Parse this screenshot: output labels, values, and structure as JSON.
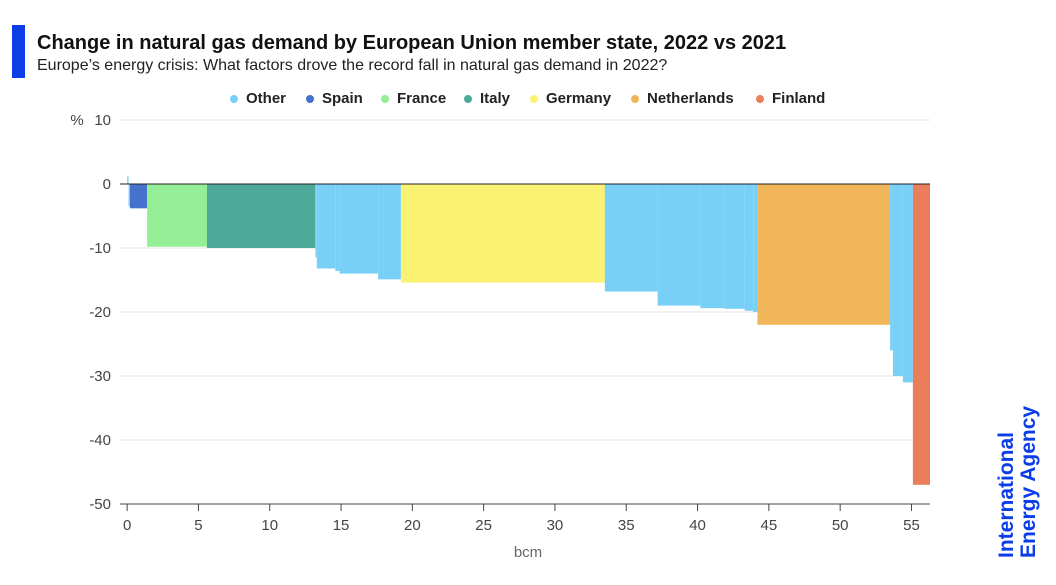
{
  "header": {
    "title": "Change in natural gas demand by European Union member state, 2022 vs 2021",
    "subtitle": "Europe’s energy crisis: What factors drove the record fall in natural gas demand in 2022?"
  },
  "logo": {
    "line1": "International",
    "line2": "Energy Agency"
  },
  "colors": {
    "accent": "#0c3ee8",
    "Other": "#79d0f7",
    "Spain": "#4472cc",
    "France": "#93ee96",
    "Italy": "#4daa9b",
    "Germany": "#fbf274",
    "Netherlands": "#f2b65a",
    "Finland": "#ea7d5a"
  },
  "chart_data": {
    "type": "bar",
    "subtype": "variable-width",
    "title": "Change in natural gas demand by European Union member state, 2022 vs 2021",
    "xlabel": "bcm",
    "ylabel": "%",
    "xlim": [
      -0.5,
      56.3
    ],
    "ylim": [
      -50,
      10
    ],
    "xticks": [
      0,
      5,
      10,
      15,
      20,
      25,
      30,
      35,
      40,
      45,
      50,
      55
    ],
    "yticks": [
      10,
      0,
      -10,
      -20,
      -30,
      -40,
      -50
    ],
    "grid": true,
    "legend_position": "top",
    "legend": [
      "Other",
      "Spain",
      "France",
      "Italy",
      "Germany",
      "Netherlands",
      "Finland"
    ],
    "bars": [
      {
        "series": "Other",
        "x0": 0.0,
        "x1": 0.1,
        "value": 1.2
      },
      {
        "series": "Other",
        "x0": 0.1,
        "x1": 0.2,
        "value": -3.5
      },
      {
        "series": "Spain",
        "x0": 0.2,
        "x1": 1.4,
        "value": -3.8
      },
      {
        "series": "France",
        "x0": 1.4,
        "x1": 5.6,
        "value": -9.8
      },
      {
        "series": "Italy",
        "x0": 5.6,
        "x1": 13.2,
        "value": -10.0
      },
      {
        "series": "Other",
        "x0": 13.2,
        "x1": 13.3,
        "value": -11.5
      },
      {
        "series": "Other",
        "x0": 13.3,
        "x1": 14.6,
        "value": -13.2
      },
      {
        "series": "Other",
        "x0": 14.6,
        "x1": 14.9,
        "value": -13.6
      },
      {
        "series": "Other",
        "x0": 14.9,
        "x1": 17.6,
        "value": -14.0
      },
      {
        "series": "Other",
        "x0": 17.6,
        "x1": 19.2,
        "value": -14.9
      },
      {
        "series": "Germany",
        "x0": 19.2,
        "x1": 33.5,
        "value": -15.4
      },
      {
        "series": "Other",
        "x0": 33.5,
        "x1": 37.2,
        "value": -16.8
      },
      {
        "series": "Other",
        "x0": 37.2,
        "x1": 40.2,
        "value": -19.0
      },
      {
        "series": "Other",
        "x0": 40.2,
        "x1": 41.9,
        "value": -19.4
      },
      {
        "series": "Other",
        "x0": 41.9,
        "x1": 43.3,
        "value": -19.5
      },
      {
        "series": "Other",
        "x0": 43.3,
        "x1": 43.9,
        "value": -19.8
      },
      {
        "series": "Other",
        "x0": 43.9,
        "x1": 44.2,
        "value": -20.0
      },
      {
        "series": "Netherlands",
        "x0": 44.2,
        "x1": 53.5,
        "value": -22.0
      },
      {
        "series": "Other",
        "x0": 53.5,
        "x1": 53.7,
        "value": -26.0
      },
      {
        "series": "Other",
        "x0": 53.7,
        "x1": 54.4,
        "value": -30.0
      },
      {
        "series": "Other",
        "x0": 54.4,
        "x1": 55.1,
        "value": -31.0
      },
      {
        "series": "Finland",
        "x0": 55.1,
        "x1": 56.3,
        "value": -47.0
      }
    ]
  }
}
